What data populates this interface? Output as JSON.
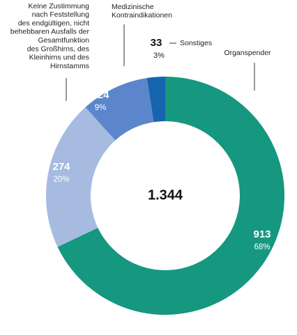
{
  "chart_data": {
    "type": "donut",
    "categories": [
      [
        "Organspender"
      ],
      [
        "Keine Zustimmung",
        "nach Feststellung",
        "des endgültigen, nicht",
        "behebbaren Ausfalls der",
        "Gesamtfunktion",
        "des Großhirns, des",
        "Kleinhirns und des",
        "Hirnstamms"
      ],
      [
        "Medizinische",
        "Kontraindikationen"
      ],
      [
        "Sonstiges"
      ]
    ],
    "values": [
      913,
      274,
      124,
      33
    ],
    "shares": [
      68,
      20,
      9,
      3
    ],
    "share_labels": [
      "68%",
      "20%",
      "9%",
      "3%"
    ],
    "colors": [
      "#16977f",
      "#a7bbe0",
      "#5b86cc",
      "#1664ae"
    ],
    "center_label": "1.344"
  }
}
